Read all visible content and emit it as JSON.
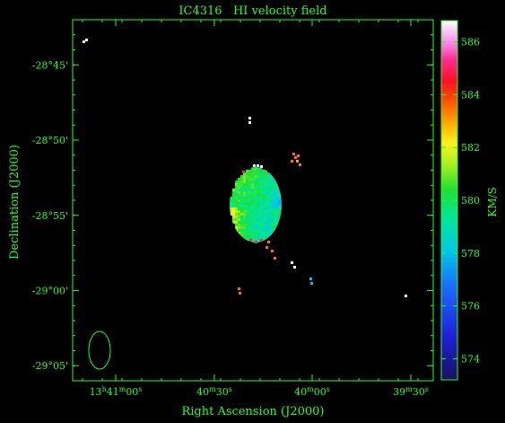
{
  "chart_data": {
    "type": "heatmap",
    "title": "IC4316   HI velocity field",
    "xlabel": "Right Ascension (J2000)",
    "ylabel": "Declination (J2000)",
    "colorbar_label": "KM/S",
    "x_ticks": [
      {
        "label": "13h41m00s",
        "main": "13",
        "parts": [
          [
            "h",
            "41"
          ],
          [
            "m",
            "00"
          ],
          [
            "s",
            ""
          ]
        ]
      },
      {
        "label": "40m30s",
        "main": "40",
        "parts": [
          [
            "m",
            "30"
          ],
          [
            "s",
            ""
          ]
        ]
      },
      {
        "label": "40m00s",
        "main": "40",
        "parts": [
          [
            "m",
            "00"
          ],
          [
            "s",
            ""
          ]
        ]
      },
      {
        "label": "39m30s",
        "main": "39",
        "parts": [
          [
            "m",
            "30"
          ],
          [
            "s",
            ""
          ]
        ]
      }
    ],
    "y_ticks": [
      {
        "label": "-28°45'",
        "value": -28.75
      },
      {
        "label": "-28°50'",
        "value": -28.8333
      },
      {
        "label": "-28°55'",
        "value": -28.9167
      },
      {
        "label": "-29°00'",
        "value": -29.0
      },
      {
        "label": "-29°05'",
        "value": -29.0833
      }
    ],
    "ylim_deg": [
      -29.1,
      -28.7
    ],
    "colorbar_ticks": [
      574,
      576,
      578,
      580,
      582,
      584,
      586
    ],
    "colorbar_range": [
      573.2,
      586.8
    ],
    "velocity_field": {
      "center_kms": 579.5,
      "gradient": "higher velocities toward the south-east (lower-left) edge, lower toward the north-west"
    },
    "beam": "ellipse, lower-left corner",
    "grid": false,
    "colors": {
      "axes": "#22ff22",
      "background": "#000000",
      "beam": "#22ff22"
    }
  }
}
